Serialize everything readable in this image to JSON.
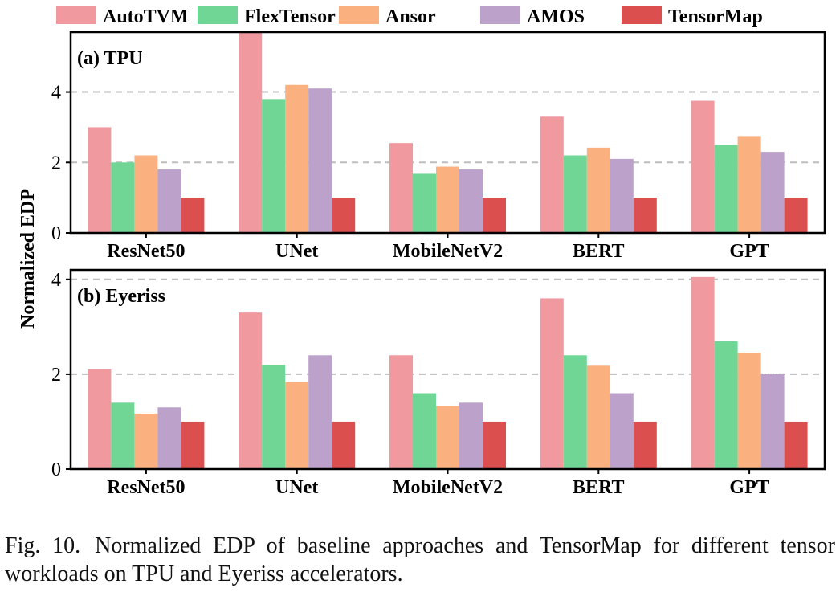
{
  "legend": [
    {
      "name": "AutoTVM",
      "color": "#f0999f"
    },
    {
      "name": "FlexTensor",
      "color": "#6fd696"
    },
    {
      "name": "Ansor",
      "color": "#fbb07f"
    },
    {
      "name": "AMOS",
      "color": "#bca2cb"
    },
    {
      "name": "TensorMap",
      "color": "#dc4f4f"
    }
  ],
  "ylabel": "Normalized EDP",
  "caption": {
    "label": "Fig. 10.",
    "text": "Normalized EDP of baseline approaches and TensorMap for different tensor workloads on TPU and Eyeriss accelerators."
  },
  "chart_data": [
    {
      "type": "bar",
      "title": "(a) TPU",
      "categories": [
        "ResNet50",
        "UNet",
        "MobileNetV2",
        "BERT",
        "GPT"
      ],
      "ylim": [
        0,
        5.7
      ],
      "yticks": [
        0,
        2,
        4
      ],
      "grid": "dashed horizontal at y ticks",
      "series": [
        {
          "name": "AutoTVM",
          "values": [
            3.0,
            5.7,
            2.55,
            3.3,
            3.75
          ]
        },
        {
          "name": "FlexTensor",
          "values": [
            2.0,
            3.8,
            1.7,
            2.2,
            2.5
          ]
        },
        {
          "name": "Ansor",
          "values": [
            2.2,
            4.2,
            1.88,
            2.42,
            2.75
          ]
        },
        {
          "name": "AMOS",
          "values": [
            1.8,
            4.1,
            1.8,
            2.1,
            2.3
          ]
        },
        {
          "name": "TensorMap",
          "values": [
            1.0,
            1.0,
            1.0,
            1.0,
            1.0
          ]
        }
      ]
    },
    {
      "type": "bar",
      "title": "(b) Eyeriss",
      "categories": [
        "ResNet50",
        "UNet",
        "MobileNetV2",
        "BERT",
        "GPT"
      ],
      "ylim": [
        0,
        4.2
      ],
      "yticks": [
        0,
        2,
        4
      ],
      "grid": "dashed horizontal at y ticks",
      "series": [
        {
          "name": "AutoTVM",
          "values": [
            2.1,
            3.3,
            2.4,
            3.6,
            4.05
          ]
        },
        {
          "name": "FlexTensor",
          "values": [
            1.4,
            2.2,
            1.6,
            2.4,
            2.7
          ]
        },
        {
          "name": "Ansor",
          "values": [
            1.17,
            1.83,
            1.33,
            2.18,
            2.45
          ]
        },
        {
          "name": "AMOS",
          "values": [
            1.3,
            2.4,
            1.4,
            1.6,
            2.0
          ]
        },
        {
          "name": "TensorMap",
          "values": [
            1.0,
            1.0,
            1.0,
            1.0,
            1.0
          ]
        }
      ]
    }
  ]
}
